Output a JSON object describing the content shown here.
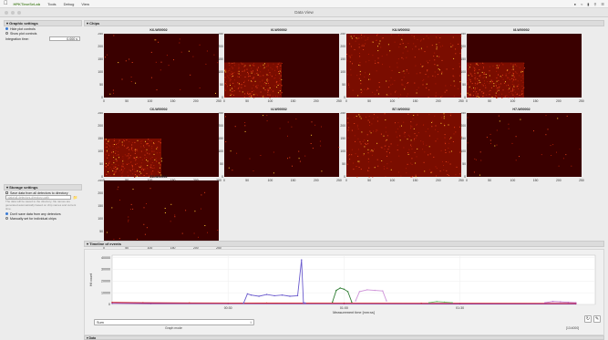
{
  "menubar": {
    "app_name": "HPKTimeSeLab",
    "items": [
      "Tools",
      "Debug",
      "View"
    ]
  },
  "window": {
    "title": "Data View"
  },
  "graphic_settings": {
    "header": "Graphic settings",
    "hide_plot_controls": "Hide plot controls",
    "show_plot_controls": "Show plot controls",
    "integration_label": "Integration time:",
    "integration_value": "0.000 s"
  },
  "chips": {
    "header": "Chips",
    "items": [
      {
        "name": "K6-W00002"
      },
      {
        "name": "I6-W00002"
      },
      {
        "name": "K8-W00002"
      },
      {
        "name": "I8-W00002"
      },
      {
        "name": "C6-W00002"
      },
      {
        "name": "I4-W00002"
      },
      {
        "name": "B7-W00002"
      },
      {
        "name": "H7-W00002"
      },
      {
        "name": "E6-W00002"
      }
    ],
    "x_ticks": [
      "0",
      "50",
      "100",
      "150",
      "200",
      "250"
    ],
    "y_ticks": [
      "0",
      "50",
      "100",
      "150",
      "200",
      "250"
    ]
  },
  "storage_settings": {
    "header": "Storage settings",
    "save_dir_label": "Save data from all detectors to directory",
    "dir_placeholder": "/data/all-detectors-directory-path",
    "hint": "The data will be saved to the directory; file names are generated automatically based on chip names and current time.",
    "dont_save": "Don't save data from any detectors",
    "manual": "Manually set for individual chips"
  },
  "timeline": {
    "header": "Timeline of events",
    "ylabel": "Hit count",
    "xlabel": "Measurement time [mm:ss]",
    "y_ticks": [
      "0",
      "10000",
      "20000",
      "30000",
      "40000"
    ],
    "x_ticks": [
      "00:30",
      "01:00",
      "01:30"
    ],
    "select_value": "Sum",
    "select_sublabel": "Graph mode",
    "time_value": "[13:4000]"
  },
  "data_section": {
    "header": "Data"
  },
  "chart_data": {
    "type": "line",
    "ylabel": "Hit count",
    "xlabel": "Measurement time [mm:ss]",
    "ylim": [
      0,
      42000
    ],
    "x_ticks": [
      "00:30",
      "01:00",
      "01:30"
    ],
    "series": [
      {
        "color": "#7b1fa2",
        "values": [
          [
            0,
            900
          ],
          [
            10,
            800
          ],
          [
            30,
            700
          ],
          [
            60,
            600
          ],
          [
            90,
            500
          ],
          [
            120,
            450
          ]
        ]
      },
      {
        "color": "#d32f2f",
        "values": [
          [
            0,
            1800
          ],
          [
            8,
            1500
          ],
          [
            20,
            1300
          ],
          [
            40,
            1200
          ],
          [
            60,
            1100
          ],
          [
            80,
            1000
          ],
          [
            120,
            900
          ]
        ]
      },
      {
        "color": "#6a5acd",
        "values": [
          [
            34,
            1000
          ],
          [
            35,
            9000
          ],
          [
            36,
            8000
          ],
          [
            38,
            7000
          ],
          [
            40,
            8500
          ],
          [
            42,
            7500
          ],
          [
            44,
            8000
          ],
          [
            46,
            7000
          ],
          [
            48,
            7500
          ],
          [
            49,
            38000
          ],
          [
            49.5,
            1500
          ],
          [
            50,
            1200
          ]
        ]
      },
      {
        "color": "#2e7d32",
        "values": [
          [
            57,
            2000
          ],
          [
            58,
            12000
          ],
          [
            59,
            14000
          ],
          [
            60,
            13000
          ],
          [
            61,
            11000
          ],
          [
            62,
            2000
          ]
        ]
      },
      {
        "color": "#ce93d8",
        "values": [
          [
            63,
            3000
          ],
          [
            64,
            11000
          ],
          [
            66,
            12500
          ],
          [
            68,
            12000
          ],
          [
            70,
            11500
          ],
          [
            71,
            3000
          ]
        ]
      },
      {
        "color": "#66bb6a",
        "values": [
          [
            82,
            1500
          ],
          [
            84,
            2500
          ],
          [
            86,
            2000
          ],
          [
            88,
            1500
          ]
        ]
      },
      {
        "color": "#ba68c8",
        "values": [
          [
            112,
            1500
          ],
          [
            114,
            2500
          ],
          [
            116,
            2200
          ],
          [
            118,
            1800
          ],
          [
            120,
            1500
          ]
        ]
      }
    ]
  }
}
